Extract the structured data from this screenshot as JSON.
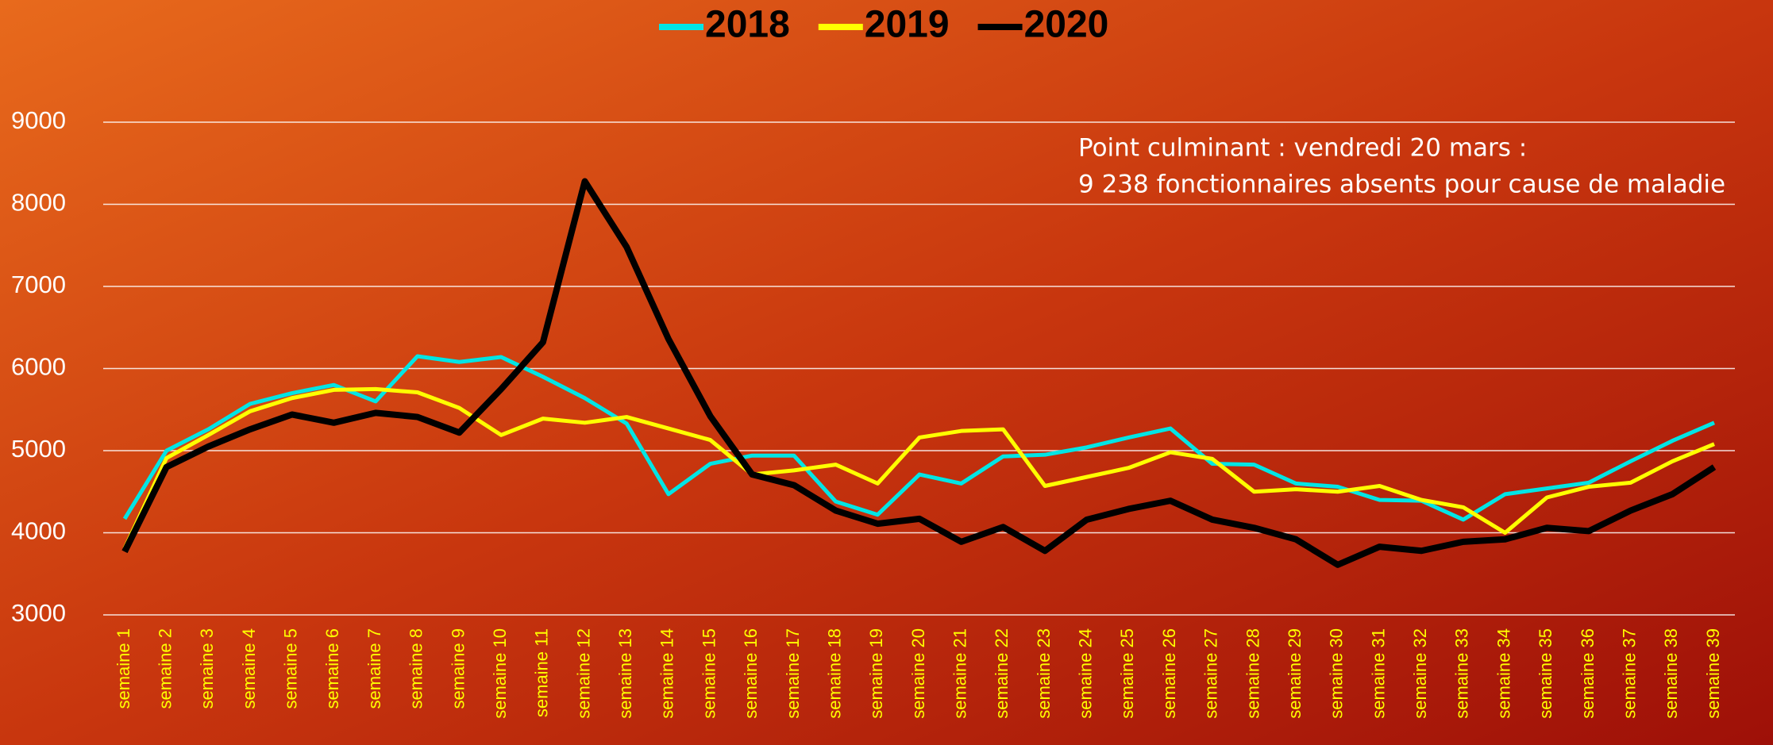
{
  "chart_data": {
    "type": "line",
    "categories": [
      "semaine 1",
      "semaine 2",
      "semaine 3",
      "semaine 4",
      "semaine 5",
      "semaine 6",
      "semaine 7",
      "semaine 8",
      "semaine 9",
      "semaine 10",
      "semaine 11",
      "semaine 12",
      "semaine 13",
      "semaine 14",
      "semaine 15",
      "semaine 16",
      "semaine 17",
      "semaine 18",
      "semaine 19",
      "semaine 20",
      "semaine 21",
      "semaine 22",
      "semaine 23",
      "semaine 24",
      "semaine 25",
      "semaine 26",
      "semaine 27",
      "semaine 28",
      "semaine 29",
      "semaine 30",
      "semaine 31",
      "semaine 32",
      "semaine 33",
      "semaine 34",
      "semaine 35",
      "semaine 36",
      "semaine 37",
      "semaine 38",
      "semaine 39"
    ],
    "series": [
      {
        "name": "2018",
        "color": "#00e5e5",
        "values": [
          4170,
          5000,
          5260,
          5570,
          5700,
          5800,
          5600,
          6150,
          6080,
          6140,
          5900,
          5640,
          5330,
          4470,
          4840,
          4940,
          4940,
          4380,
          4220,
          4710,
          4600,
          4930,
          4950,
          5040,
          5160,
          5270,
          4840,
          4830,
          4600,
          4560,
          4400,
          4390,
          4160,
          4470,
          4540,
          4610,
          4870,
          5120,
          5340
        ]
      },
      {
        "name": "2019",
        "color": "#ffff00",
        "values": [
          3810,
          4910,
          5190,
          5480,
          5640,
          5740,
          5750,
          5710,
          5520,
          5190,
          5390,
          5340,
          5410,
          5270,
          5130,
          4710,
          4760,
          4830,
          4600,
          5160,
          5240,
          5260,
          4570,
          4680,
          4790,
          4980,
          4900,
          4500,
          4530,
          4500,
          4570,
          4400,
          4310,
          4000,
          4430,
          4560,
          4610,
          4870,
          5080
        ]
      },
      {
        "name": "2020",
        "color": "#000000",
        "values": [
          3770,
          4800,
          5050,
          5260,
          5440,
          5340,
          5460,
          5410,
          5220,
          5750,
          6320,
          8280,
          7480,
          6360,
          5420,
          4710,
          4580,
          4270,
          4110,
          4170,
          3890,
          4070,
          3780,
          4160,
          4290,
          4390,
          4160,
          4060,
          3920,
          3610,
          3830,
          3780,
          3890,
          3920,
          4060,
          4020,
          4270,
          4470,
          4800
        ]
      }
    ],
    "annotations": [
      "Point culminant : vendredi 20 mars :",
      "9 238 fonctionnaires absents pour cause de maladie"
    ],
    "ylim": [
      3000,
      9000
    ],
    "yticks": [
      3000,
      4000,
      5000,
      6000,
      7000,
      8000,
      9000
    ],
    "grid": true,
    "legend": "top"
  }
}
